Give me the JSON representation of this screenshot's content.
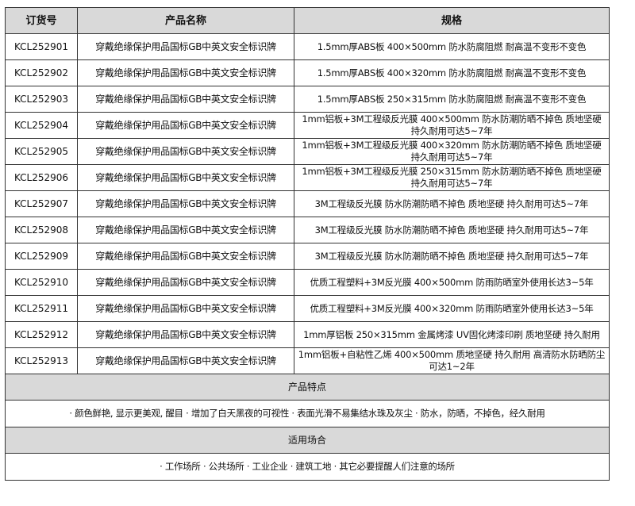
{
  "headers": {
    "code": "订货号",
    "name": "产品名称",
    "spec": "规格"
  },
  "rows": [
    {
      "code": "KCL252901",
      "name": "穿戴绝缘保护用品国标GB中英文安全标识牌",
      "spec": "1.5mm厚ABS板 400×500mm 防水防腐阻燃 耐高温不变形不变色"
    },
    {
      "code": "KCL252902",
      "name": "穿戴绝缘保护用品国标GB中英文安全标识牌",
      "spec": "1.5mm厚ABS板 400×320mm 防水防腐阻燃 耐高温不变形不变色"
    },
    {
      "code": "KCL252903",
      "name": "穿戴绝缘保护用品国标GB中英文安全标识牌",
      "spec": "1.5mm厚ABS板 250×315mm 防水防腐阻燃 耐高温不变形不变色"
    },
    {
      "code": "KCL252904",
      "name": "穿戴绝缘保护用品国标GB中英文安全标识牌",
      "spec": "1mm铝板+3M工程级反光膜 400×500mm 防水防潮防晒不掉色 质地坚硬 持久耐用可达5~7年"
    },
    {
      "code": "KCL252905",
      "name": "穿戴绝缘保护用品国标GB中英文安全标识牌",
      "spec": "1mm铝板+3M工程级反光膜 400×320mm 防水防潮防晒不掉色 质地坚硬 持久耐用可达5~7年"
    },
    {
      "code": "KCL252906",
      "name": "穿戴绝缘保护用品国标GB中英文安全标识牌",
      "spec": "1mm铝板+3M工程级反光膜 250×315mm 防水防潮防晒不掉色 质地坚硬 持久耐用可达5~7年"
    },
    {
      "code": "KCL252907",
      "name": "穿戴绝缘保护用品国标GB中英文安全标识牌",
      "spec": "3M工程级反光膜 防水防潮防晒不掉色 质地坚硬 持久耐用可达5~7年"
    },
    {
      "code": "KCL252908",
      "name": "穿戴绝缘保护用品国标GB中英文安全标识牌",
      "spec": "3M工程级反光膜 防水防潮防晒不掉色 质地坚硬 持久耐用可达5~7年"
    },
    {
      "code": "KCL252909",
      "name": "穿戴绝缘保护用品国标GB中英文安全标识牌",
      "spec": "3M工程级反光膜 防水防潮防晒不掉色 质地坚硬 持久耐用可达5~7年"
    },
    {
      "code": "KCL252910",
      "name": "穿戴绝缘保护用品国标GB中英文安全标识牌",
      "spec": "优质工程塑料+3M反光膜 400×500mm 防雨防晒室外使用长达3~5年"
    },
    {
      "code": "KCL252911",
      "name": "穿戴绝缘保护用品国标GB中英文安全标识牌",
      "spec": "优质工程塑料+3M反光膜 400×320mm 防雨防晒室外使用长达3~5年"
    },
    {
      "code": "KCL252912",
      "name": "穿戴绝缘保护用品国标GB中英文安全标识牌",
      "spec": "1mm厚铝板 250×315mm 金属烤漆 UV固化烤漆印刷 质地坚硬 持久耐用"
    },
    {
      "code": "KCL252913",
      "name": "穿戴绝缘保护用品国标GB中英文安全标识牌",
      "spec": "1mm铝板+自粘性乙烯 400×500mm 质地坚硬 持久耐用 高清防水防晒防尘可达1~2年"
    }
  ],
  "features": {
    "title": "产品特点",
    "text": "· 颜色鲜艳, 显示更美观, 醒目 · 增加了白天黑夜的可视性 · 表面光滑不易集结水珠及灰尘 · 防水，防晒，不掉色，经久耐用"
  },
  "usage": {
    "title": "适用场合",
    "text": "· 工作场所 · 公共场所 · 工业企业 · 建筑工地 · 其它必要提醒人们注意的场所"
  }
}
